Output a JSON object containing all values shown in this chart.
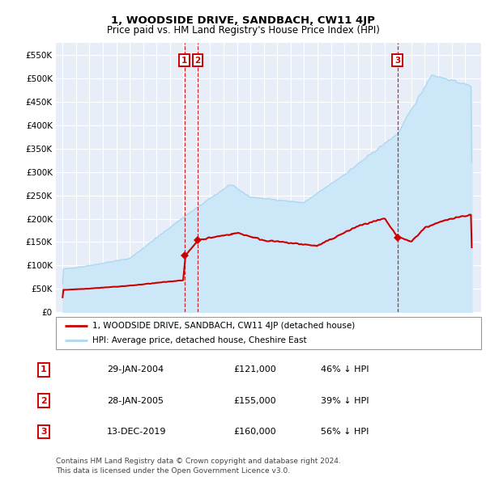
{
  "title": "1, WOODSIDE DRIVE, SANDBACH, CW11 4JP",
  "subtitle": "Price paid vs. HM Land Registry's House Price Index (HPI)",
  "ylim": [
    0,
    575000
  ],
  "yticks": [
    0,
    50000,
    100000,
    150000,
    200000,
    250000,
    300000,
    350000,
    400000,
    450000,
    500000,
    550000
  ],
  "ytick_labels": [
    "£0",
    "£50K",
    "£100K",
    "£150K",
    "£200K",
    "£250K",
    "£300K",
    "£350K",
    "£400K",
    "£450K",
    "£500K",
    "£550K"
  ],
  "hpi_color": "#add8f0",
  "hpi_fill_color": "#cce8f8",
  "price_color": "#cc0000",
  "sale_dates": [
    2004.08,
    2005.08,
    2019.96
  ],
  "sale_prices": [
    121000,
    155000,
    160000
  ],
  "sale_labels": [
    "1",
    "2",
    "3"
  ],
  "legend_entries": [
    "1, WOODSIDE DRIVE, SANDBACH, CW11 4JP (detached house)",
    "HPI: Average price, detached house, Cheshire East"
  ],
  "table_data": [
    [
      "1",
      "29-JAN-2004",
      "£121,000",
      "46% ↓ HPI"
    ],
    [
      "2",
      "28-JAN-2005",
      "£155,000",
      "39% ↓ HPI"
    ],
    [
      "3",
      "13-DEC-2019",
      "£160,000",
      "56% ↓ HPI"
    ]
  ],
  "footnote": "Contains HM Land Registry data © Crown copyright and database right 2024.\nThis data is licensed under the Open Government Licence v3.0.",
  "plot_bg_color": "#e8eef8",
  "grid_color": "#ffffff"
}
